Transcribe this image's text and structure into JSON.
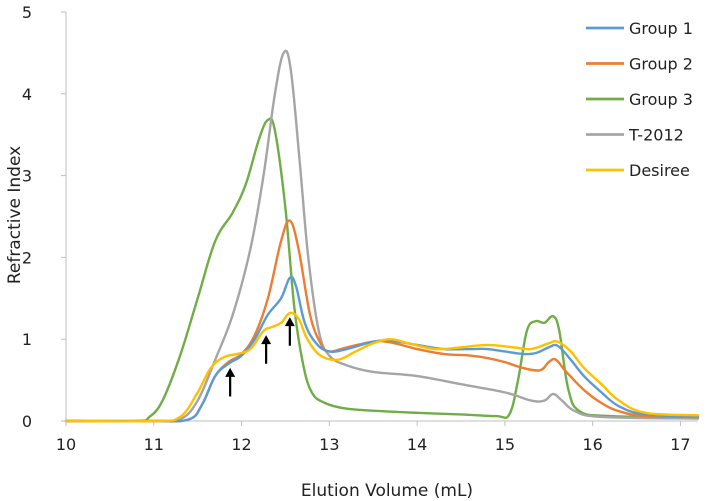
{
  "chart_data": {
    "type": "line",
    "title": "",
    "xlabel": "Elution Volume (mL)",
    "ylabel": "Refractive Index",
    "xlim": [
      10,
      17.2
    ],
    "ylim": [
      0,
      5
    ],
    "x_ticks": [
      "10",
      "11",
      "12",
      "13",
      "14",
      "15",
      "16",
      "17"
    ],
    "y_ticks": [
      "0",
      "1",
      "2",
      "3",
      "4",
      "5"
    ],
    "grid": false,
    "legend": "top-right",
    "series": [
      {
        "name": "Group 1",
        "color": "#5B9BD5",
        "points": [
          [
            10,
            0
          ],
          [
            11,
            0
          ],
          [
            11.4,
            0.02
          ],
          [
            11.55,
            0.2
          ],
          [
            11.7,
            0.55
          ],
          [
            11.85,
            0.7
          ],
          [
            12.0,
            0.8
          ],
          [
            12.15,
            1.0
          ],
          [
            12.3,
            1.3
          ],
          [
            12.45,
            1.5
          ],
          [
            12.55,
            1.75
          ],
          [
            12.62,
            1.65
          ],
          [
            12.72,
            1.2
          ],
          [
            12.85,
            0.95
          ],
          [
            13.0,
            0.85
          ],
          [
            13.2,
            0.88
          ],
          [
            13.5,
            0.97
          ],
          [
            13.7,
            0.98
          ],
          [
            14.0,
            0.93
          ],
          [
            14.3,
            0.88
          ],
          [
            14.6,
            0.88
          ],
          [
            14.8,
            0.88
          ],
          [
            15.0,
            0.85
          ],
          [
            15.2,
            0.82
          ],
          [
            15.35,
            0.83
          ],
          [
            15.5,
            0.9
          ],
          [
            15.6,
            0.92
          ],
          [
            15.75,
            0.75
          ],
          [
            15.9,
            0.55
          ],
          [
            16.1,
            0.35
          ],
          [
            16.3,
            0.18
          ],
          [
            16.6,
            0.08
          ],
          [
            17.2,
            0.06
          ]
        ]
      },
      {
        "name": "Group 2",
        "color": "#ED7D31",
        "points": [
          [
            10,
            0
          ],
          [
            11,
            0
          ],
          [
            11.4,
            0.02
          ],
          [
            11.55,
            0.2
          ],
          [
            11.7,
            0.55
          ],
          [
            11.85,
            0.72
          ],
          [
            12.0,
            0.82
          ],
          [
            12.15,
            1.05
          ],
          [
            12.3,
            1.5
          ],
          [
            12.45,
            2.2
          ],
          [
            12.55,
            2.45
          ],
          [
            12.65,
            2.1
          ],
          [
            12.78,
            1.3
          ],
          [
            12.9,
            0.95
          ],
          [
            13.0,
            0.85
          ],
          [
            13.2,
            0.9
          ],
          [
            13.5,
            0.97
          ],
          [
            13.7,
            0.96
          ],
          [
            14.0,
            0.88
          ],
          [
            14.3,
            0.82
          ],
          [
            14.6,
            0.8
          ],
          [
            14.8,
            0.77
          ],
          [
            15.0,
            0.72
          ],
          [
            15.2,
            0.65
          ],
          [
            15.4,
            0.62
          ],
          [
            15.5,
            0.72
          ],
          [
            15.58,
            0.75
          ],
          [
            15.7,
            0.6
          ],
          [
            15.9,
            0.38
          ],
          [
            16.1,
            0.22
          ],
          [
            16.3,
            0.12
          ],
          [
            16.6,
            0.06
          ],
          [
            17.2,
            0.05
          ]
        ]
      },
      {
        "name": "Group 3",
        "color": "#70AD47",
        "points": [
          [
            10,
            0
          ],
          [
            10.8,
            0
          ],
          [
            10.95,
            0.05
          ],
          [
            11.1,
            0.25
          ],
          [
            11.3,
            0.8
          ],
          [
            11.5,
            1.5
          ],
          [
            11.7,
            2.2
          ],
          [
            11.9,
            2.55
          ],
          [
            12.05,
            2.9
          ],
          [
            12.2,
            3.45
          ],
          [
            12.3,
            3.68
          ],
          [
            12.38,
            3.55
          ],
          [
            12.5,
            2.6
          ],
          [
            12.6,
            1.4
          ],
          [
            12.7,
            0.7
          ],
          [
            12.8,
            0.35
          ],
          [
            12.95,
            0.22
          ],
          [
            13.2,
            0.15
          ],
          [
            13.6,
            0.12
          ],
          [
            14.0,
            0.1
          ],
          [
            14.5,
            0.08
          ],
          [
            14.9,
            0.06
          ],
          [
            15.05,
            0.08
          ],
          [
            15.15,
            0.5
          ],
          [
            15.25,
            1.1
          ],
          [
            15.35,
            1.22
          ],
          [
            15.45,
            1.2
          ],
          [
            15.55,
            1.28
          ],
          [
            15.62,
            1.1
          ],
          [
            15.72,
            0.4
          ],
          [
            15.85,
            0.12
          ],
          [
            16.2,
            0.06
          ],
          [
            17.2,
            0.04
          ]
        ]
      },
      {
        "name": "T-2012",
        "color": "#A5A5A5",
        "points": [
          [
            10,
            0
          ],
          [
            11,
            0
          ],
          [
            11.3,
            0.02
          ],
          [
            11.5,
            0.25
          ],
          [
            11.7,
            0.75
          ],
          [
            11.9,
            1.3
          ],
          [
            12.1,
            2.1
          ],
          [
            12.25,
            3.0
          ],
          [
            12.38,
            4.0
          ],
          [
            12.48,
            4.5
          ],
          [
            12.56,
            4.3
          ],
          [
            12.66,
            3.2
          ],
          [
            12.76,
            2.0
          ],
          [
            12.88,
            1.1
          ],
          [
            13.0,
            0.8
          ],
          [
            13.2,
            0.68
          ],
          [
            13.5,
            0.6
          ],
          [
            14.0,
            0.55
          ],
          [
            14.5,
            0.45
          ],
          [
            15.0,
            0.35
          ],
          [
            15.3,
            0.25
          ],
          [
            15.45,
            0.25
          ],
          [
            15.55,
            0.33
          ],
          [
            15.65,
            0.25
          ],
          [
            15.8,
            0.12
          ],
          [
            16.1,
            0.05
          ],
          [
            17.2,
            0.03
          ]
        ]
      },
      {
        "name": "Desiree",
        "color": "#FFC000",
        "points": [
          [
            10,
            0
          ],
          [
            11,
            0
          ],
          [
            11.3,
            0.05
          ],
          [
            11.5,
            0.35
          ],
          [
            11.65,
            0.65
          ],
          [
            11.8,
            0.78
          ],
          [
            11.95,
            0.82
          ],
          [
            12.1,
            0.88
          ],
          [
            12.25,
            1.1
          ],
          [
            12.35,
            1.15
          ],
          [
            12.45,
            1.2
          ],
          [
            12.55,
            1.32
          ],
          [
            12.65,
            1.25
          ],
          [
            12.75,
            1.0
          ],
          [
            12.9,
            0.8
          ],
          [
            13.1,
            0.75
          ],
          [
            13.3,
            0.85
          ],
          [
            13.5,
            0.95
          ],
          [
            13.7,
            1.0
          ],
          [
            13.9,
            0.95
          ],
          [
            14.2,
            0.88
          ],
          [
            14.5,
            0.9
          ],
          [
            14.8,
            0.93
          ],
          [
            15.1,
            0.9
          ],
          [
            15.3,
            0.88
          ],
          [
            15.5,
            0.95
          ],
          [
            15.6,
            0.97
          ],
          [
            15.75,
            0.85
          ],
          [
            15.9,
            0.65
          ],
          [
            16.1,
            0.45
          ],
          [
            16.3,
            0.25
          ],
          [
            16.6,
            0.1
          ],
          [
            17.2,
            0.07
          ]
        ]
      }
    ],
    "arrows": [
      {
        "x": 11.87,
        "tip_y": 0.65,
        "tail_y": 0.3
      },
      {
        "x": 12.28,
        "tip_y": 1.05,
        "tail_y": 0.7
      },
      {
        "x": 12.55,
        "tip_y": 1.27,
        "tail_y": 0.92
      }
    ]
  }
}
